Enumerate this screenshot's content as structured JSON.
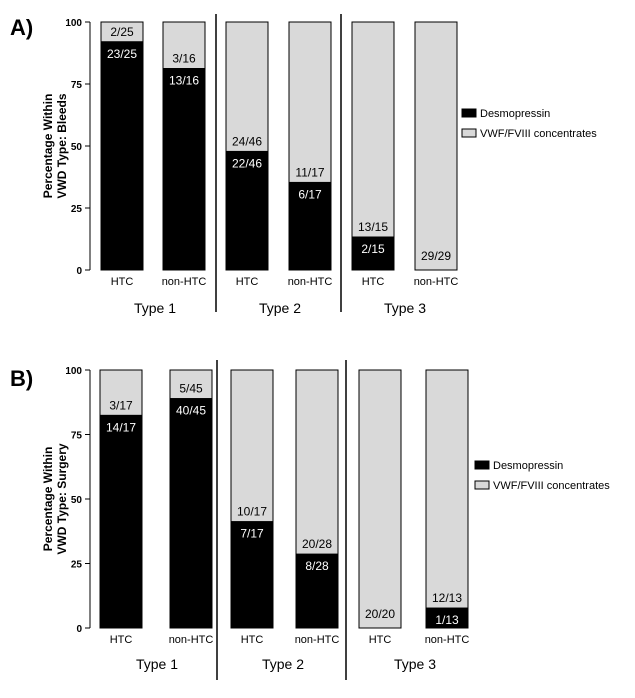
{
  "colors": {
    "desmopressin": "#000000",
    "concentrates": "#d9d9d9",
    "label_on_dark": "#ffffff",
    "label_on_light": "#000000",
    "axis": "#000000"
  },
  "chart_data": [
    {
      "type": "bar",
      "stacked": true,
      "panel_label": "A)",
      "ylabel": [
        "Percentage Within",
        "VWD Type: Bleeds"
      ],
      "ylim": [
        0,
        100
      ],
      "yticks": [
        "0",
        "25",
        "50",
        "75",
        "100"
      ],
      "categories": [
        "HTC",
        "non-HTC",
        "HTC",
        "non-HTC",
        "HTC",
        "non-HTC"
      ],
      "groups": [
        "Type 1",
        "Type 2",
        "Type 3"
      ],
      "series": [
        {
          "name": "Desmopressin",
          "values": [
            92,
            81.25,
            47.8,
            35.3,
            13.3,
            0
          ],
          "labels": [
            "23/25",
            "13/16",
            "22/46",
            "6/17",
            "2/15",
            ""
          ]
        },
        {
          "name": "VWF/FVIII concentrates",
          "values": [
            8,
            18.75,
            52.2,
            64.7,
            86.7,
            100
          ],
          "labels": [
            "2/25",
            "3/16",
            "24/46",
            "11/17",
            "13/15",
            "29/29"
          ]
        }
      ],
      "legend_position": "right"
    },
    {
      "type": "bar",
      "stacked": true,
      "panel_label": "B)",
      "ylabel": [
        "Percentage Within",
        "VWD Type: Surgery"
      ],
      "ylim": [
        0,
        100
      ],
      "yticks": [
        "0",
        "25",
        "50",
        "75",
        "100"
      ],
      "categories": [
        "HTC",
        "non-HTC",
        "HTC",
        "non-HTC",
        "HTC",
        "non-HTC"
      ],
      "groups": [
        "Type 1",
        "Type 2",
        "Type 3"
      ],
      "series": [
        {
          "name": "Desmopressin",
          "values": [
            82.4,
            88.9,
            41.2,
            28.6,
            0,
            7.7
          ],
          "labels": [
            "14/17",
            "40/45",
            "7/17",
            "8/28",
            "",
            "1/13"
          ]
        },
        {
          "name": "VWF/FVIII concentrates",
          "values": [
            17.6,
            11.1,
            58.8,
            71.4,
            100,
            92.3
          ],
          "labels": [
            "3/17",
            "5/45",
            "10/17",
            "20/28",
            "20/20",
            "12/13"
          ]
        }
      ],
      "legend_position": "right"
    }
  ]
}
